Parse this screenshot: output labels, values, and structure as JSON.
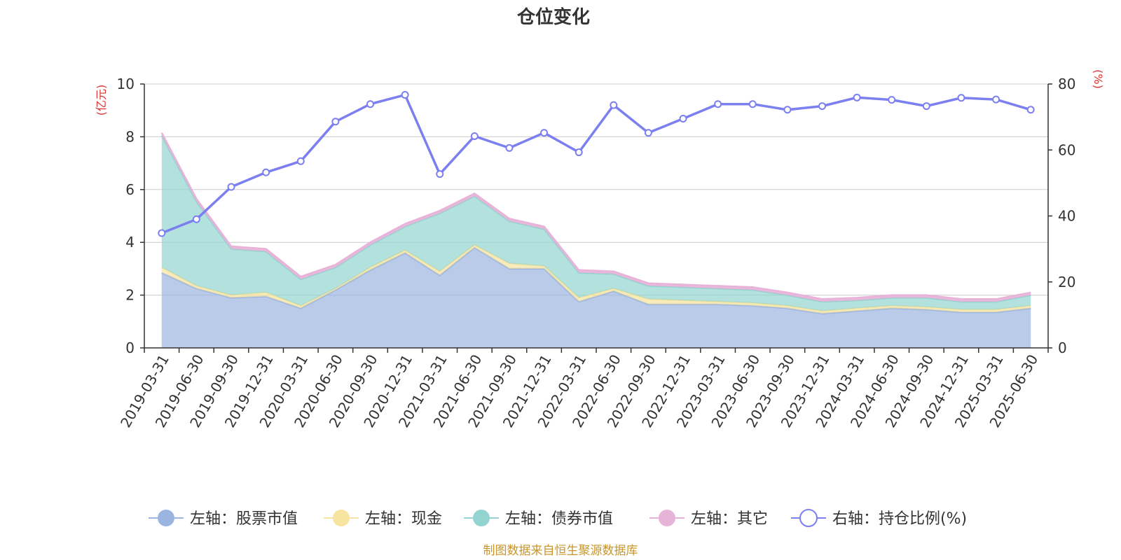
{
  "chart_data": {
    "type": "area",
    "title": "仓位变化",
    "source": "制图数据来自恒生聚源数据库",
    "left_axis": {
      "unit": "(亿元)",
      "range": [
        0,
        10
      ],
      "ticks": [
        "0",
        "2",
        "4",
        "6",
        "8",
        "10"
      ]
    },
    "right_axis": {
      "unit": "(%)",
      "range": [
        0,
        80
      ],
      "ticks": [
        "0",
        "20",
        "40",
        "60",
        "80"
      ]
    },
    "grid": true,
    "legend_position": "bottom",
    "categories": [
      "2019-03-31",
      "2019-06-30",
      "2019-09-30",
      "2019-12-31",
      "2020-03-31",
      "2020-06-30",
      "2020-09-30",
      "2020-12-31",
      "2021-03-31",
      "2021-06-30",
      "2021-09-30",
      "2021-12-31",
      "2022-03-31",
      "2022-06-30",
      "2022-09-30",
      "2022-12-31",
      "2023-03-31",
      "2023-06-30",
      "2023-09-30",
      "2023-12-31",
      "2024-03-31",
      "2024-06-30",
      "2024-09-30",
      "2024-12-31",
      "2025-03-31",
      "2025-06-30"
    ],
    "series": [
      {
        "name": "左轴：股票市值",
        "axis": "left",
        "kind": "stacked-area",
        "color": "#9bb5e0",
        "values": [
          2.85,
          2.25,
          1.9,
          1.95,
          1.5,
          2.2,
          2.95,
          3.6,
          2.75,
          3.8,
          3.0,
          3.0,
          1.75,
          2.15,
          1.65,
          1.65,
          1.65,
          1.6,
          1.5,
          1.3,
          1.4,
          1.5,
          1.45,
          1.35,
          1.35,
          1.5
        ]
      },
      {
        "name": "左轴：现金",
        "axis": "left",
        "kind": "stacked-area",
        "color": "#f7e4a0",
        "values": [
          0.2,
          0.1,
          0.1,
          0.15,
          0.1,
          0.05,
          0.1,
          0.1,
          0.15,
          0.1,
          0.2,
          0.1,
          0.15,
          0.1,
          0.2,
          0.15,
          0.1,
          0.1,
          0.1,
          0.1,
          0.1,
          0.1,
          0.1,
          0.1,
          0.1,
          0.1
        ]
      },
      {
        "name": "左轴：债券市值",
        "axis": "left",
        "kind": "stacked-area",
        "color": "#93d4d0",
        "values": [
          5.0,
          3.2,
          1.75,
          1.55,
          1.0,
          0.8,
          0.85,
          0.9,
          2.2,
          1.85,
          1.6,
          1.4,
          0.95,
          0.55,
          0.5,
          0.5,
          0.5,
          0.5,
          0.4,
          0.35,
          0.3,
          0.3,
          0.35,
          0.3,
          0.3,
          0.4
        ]
      },
      {
        "name": "左轴：其它",
        "axis": "left",
        "kind": "stacked-area",
        "color": "#e8b3d8",
        "values": [
          0.1,
          0.1,
          0.1,
          0.1,
          0.1,
          0.1,
          0.1,
          0.1,
          0.1,
          0.1,
          0.1,
          0.1,
          0.1,
          0.1,
          0.1,
          0.1,
          0.1,
          0.1,
          0.1,
          0.1,
          0.1,
          0.1,
          0.1,
          0.1,
          0.1,
          0.1
        ]
      },
      {
        "name": "右轴：持仓比例(%)",
        "axis": "right",
        "kind": "line",
        "color": "#7b7ff0",
        "values": [
          34.8,
          39.0,
          48.8,
          53.2,
          56.6,
          68.6,
          73.9,
          76.7,
          52.7,
          64.2,
          60.6,
          65.2,
          59.3,
          73.6,
          65.2,
          69.5,
          73.9,
          73.9,
          72.2,
          73.3,
          75.9,
          75.2,
          73.3,
          75.8,
          75.3,
          72.2
        ]
      }
    ]
  }
}
